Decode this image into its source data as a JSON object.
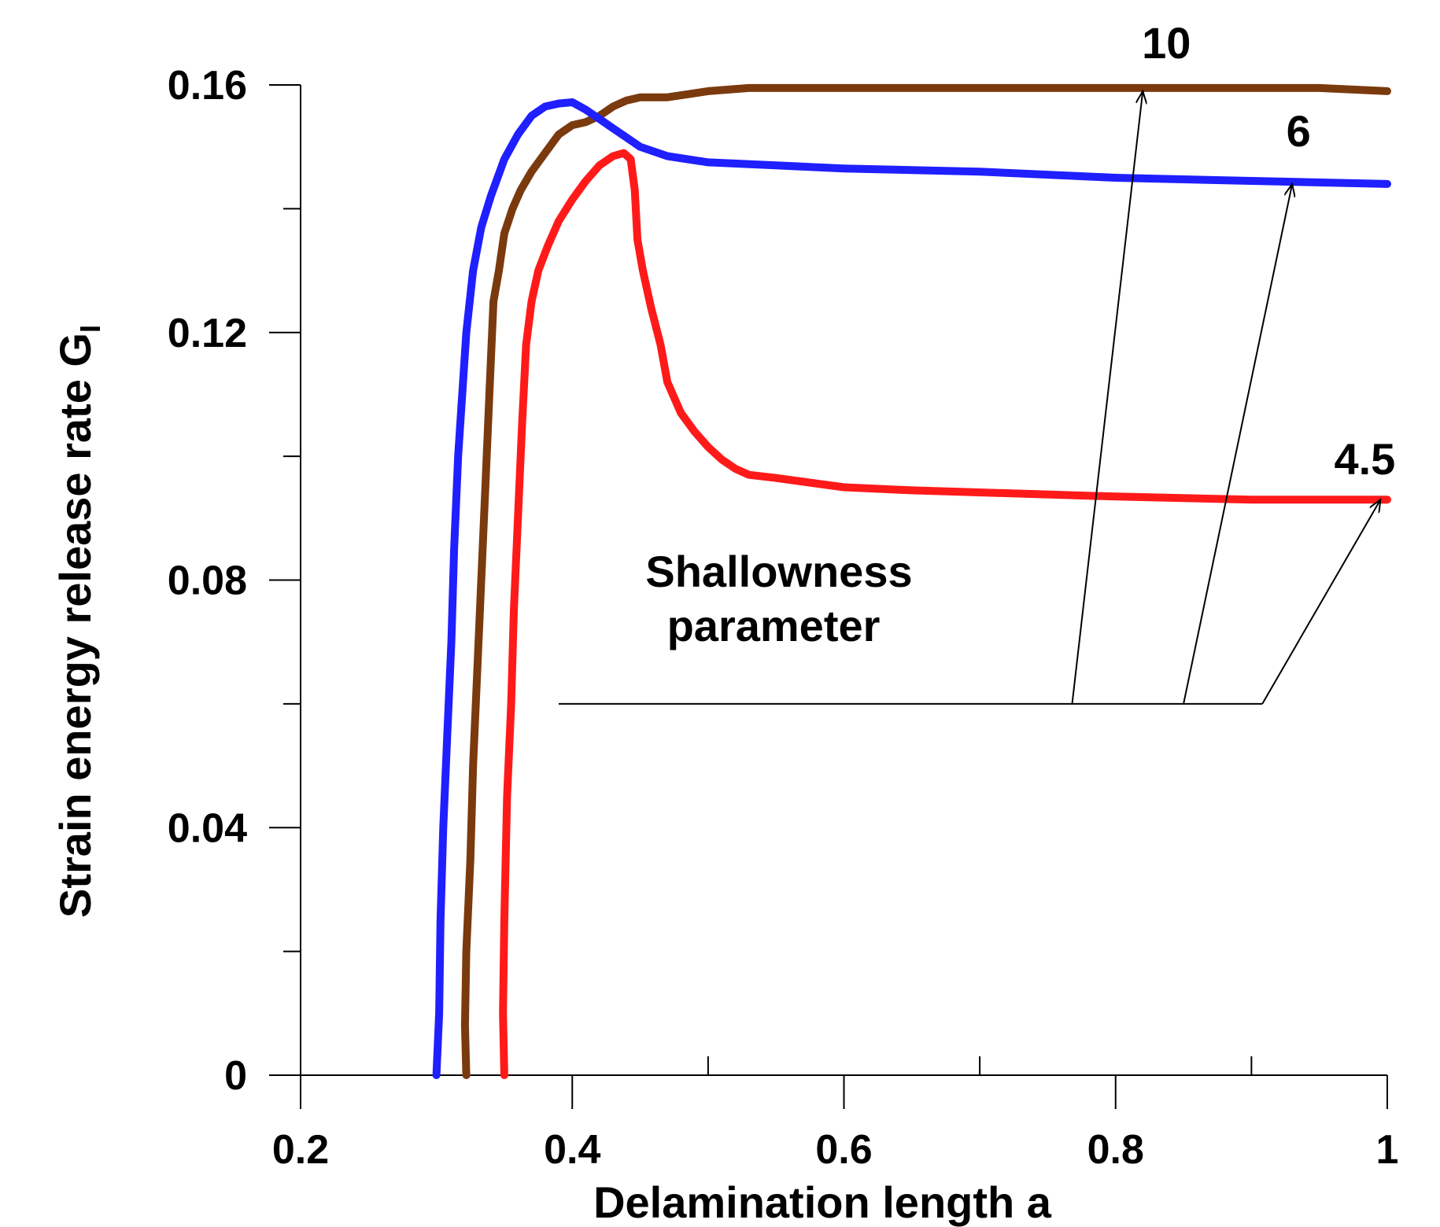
{
  "chart_data": {
    "type": "line",
    "title": "",
    "xlabel": "Delamination length a",
    "ylabel_main": "Strain energy release rate G",
    "ylabel_sub": "I",
    "xlim": [
      0.2,
      1.0
    ],
    "ylim": [
      0,
      0.16
    ],
    "xticks": [
      0.2,
      0.4,
      0.6,
      0.8,
      1.0
    ],
    "xtick_labels": [
      "0.2",
      "0.4",
      "0.6",
      "0.8",
      "1"
    ],
    "xminor": [
      0.3,
      0.5,
      0.7,
      0.9
    ],
    "yticks": [
      0,
      0.04,
      0.08,
      0.12,
      0.16
    ],
    "ytick_labels": [
      "0",
      "0.04",
      "0.08",
      "0.12",
      "0.16"
    ],
    "yminor": [
      0.02,
      0.06,
      0.1,
      0.14
    ],
    "grid": false,
    "series": [
      {
        "name": "10",
        "color": "#7a3a0e",
        "points": [
          [
            0.322,
            0.0
          ],
          [
            0.321,
            0.008
          ],
          [
            0.322,
            0.02
          ],
          [
            0.325,
            0.035
          ],
          [
            0.327,
            0.05
          ],
          [
            0.33,
            0.065
          ],
          [
            0.333,
            0.08
          ],
          [
            0.336,
            0.095
          ],
          [
            0.339,
            0.11
          ],
          [
            0.342,
            0.125
          ],
          [
            0.346,
            0.13
          ],
          [
            0.35,
            0.136
          ],
          [
            0.356,
            0.14
          ],
          [
            0.362,
            0.143
          ],
          [
            0.37,
            0.146
          ],
          [
            0.38,
            0.149
          ],
          [
            0.39,
            0.152
          ],
          [
            0.4,
            0.1535
          ],
          [
            0.41,
            0.154
          ],
          [
            0.42,
            0.155
          ],
          [
            0.43,
            0.1565
          ],
          [
            0.44,
            0.1575
          ],
          [
            0.45,
            0.158
          ],
          [
            0.47,
            0.158
          ],
          [
            0.5,
            0.159
          ],
          [
            0.53,
            0.1595
          ],
          [
            0.6,
            0.1595
          ],
          [
            0.8,
            0.1595
          ],
          [
            0.95,
            0.1595
          ],
          [
            1.0,
            0.159
          ]
        ]
      },
      {
        "name": "6",
        "color": "#1f1fff",
        "points": [
          [
            0.3,
            0.0
          ],
          [
            0.302,
            0.01
          ],
          [
            0.303,
            0.025
          ],
          [
            0.305,
            0.04
          ],
          [
            0.308,
            0.055
          ],
          [
            0.311,
            0.07
          ],
          [
            0.313,
            0.085
          ],
          [
            0.316,
            0.1
          ],
          [
            0.319,
            0.11
          ],
          [
            0.322,
            0.12
          ],
          [
            0.327,
            0.13
          ],
          [
            0.333,
            0.137
          ],
          [
            0.34,
            0.142
          ],
          [
            0.35,
            0.148
          ],
          [
            0.36,
            0.152
          ],
          [
            0.37,
            0.155
          ],
          [
            0.38,
            0.1565
          ],
          [
            0.39,
            0.157
          ],
          [
            0.4,
            0.1572
          ],
          [
            0.41,
            0.156
          ],
          [
            0.42,
            0.1545
          ],
          [
            0.43,
            0.153
          ],
          [
            0.44,
            0.1515
          ],
          [
            0.45,
            0.15
          ],
          [
            0.47,
            0.1485
          ],
          [
            0.5,
            0.1475
          ],
          [
            0.55,
            0.147
          ],
          [
            0.6,
            0.1465
          ],
          [
            0.7,
            0.146
          ],
          [
            0.8,
            0.145
          ],
          [
            0.9,
            0.1445
          ],
          [
            1.0,
            0.144
          ]
        ]
      },
      {
        "name": "4.5",
        "color": "#ff1a1a",
        "points": [
          [
            0.35,
            0.0
          ],
          [
            0.349,
            0.01
          ],
          [
            0.35,
            0.025
          ],
          [
            0.352,
            0.045
          ],
          [
            0.355,
            0.06
          ],
          [
            0.357,
            0.075
          ],
          [
            0.36,
            0.09
          ],
          [
            0.363,
            0.105
          ],
          [
            0.366,
            0.118
          ],
          [
            0.37,
            0.125
          ],
          [
            0.375,
            0.13
          ],
          [
            0.382,
            0.134
          ],
          [
            0.39,
            0.138
          ],
          [
            0.4,
            0.1415
          ],
          [
            0.41,
            0.1445
          ],
          [
            0.42,
            0.147
          ],
          [
            0.43,
            0.1485
          ],
          [
            0.438,
            0.149
          ],
          [
            0.443,
            0.148
          ],
          [
            0.446,
            0.143
          ],
          [
            0.448,
            0.135
          ],
          [
            0.452,
            0.13
          ],
          [
            0.458,
            0.124
          ],
          [
            0.465,
            0.118
          ],
          [
            0.47,
            0.112
          ],
          [
            0.48,
            0.107
          ],
          [
            0.49,
            0.104
          ],
          [
            0.5,
            0.1015
          ],
          [
            0.51,
            0.0995
          ],
          [
            0.52,
            0.098
          ],
          [
            0.53,
            0.097
          ],
          [
            0.55,
            0.0965
          ],
          [
            0.6,
            0.095
          ],
          [
            0.65,
            0.0945
          ],
          [
            0.8,
            0.0935
          ],
          [
            0.9,
            0.093
          ],
          [
            1.0,
            0.093
          ]
        ]
      }
    ],
    "annotation": {
      "text_line1": "Shallowness",
      "text_line2": "parameter",
      "baseline": {
        "x_start": 0.39,
        "x_end": 0.908,
        "y": 0.06
      },
      "arrows": [
        {
          "from": [
            0.768,
            0.06
          ],
          "to": [
            0.82,
            0.159
          ],
          "label": "10"
        },
        {
          "from": [
            0.85,
            0.06
          ],
          "to": [
            0.93,
            0.144
          ],
          "label": "6"
        },
        {
          "from": [
            0.908,
            0.06
          ],
          "to": [
            0.995,
            0.093
          ],
          "label": "4.5"
        }
      ]
    }
  }
}
